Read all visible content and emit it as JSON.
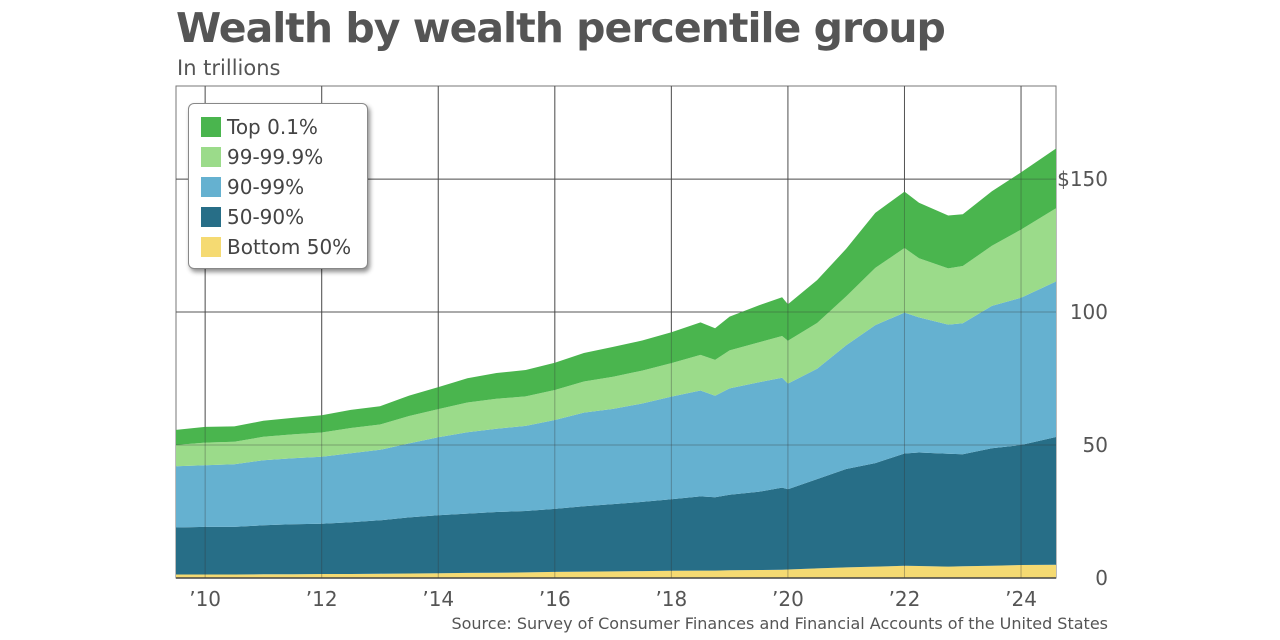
{
  "header": {
    "title": "Wealth by wealth percentile group",
    "subtitle": "In trillions"
  },
  "footer": {
    "source": "Source: Survey of Consumer Finances and Financial Accounts of the United States"
  },
  "chart_data": {
    "type": "area",
    "stacked": true,
    "title": "Wealth by wealth percentile group",
    "subtitle": "In trillions",
    "xlim": [
      2009.5,
      2024.6
    ],
    "ylim": [
      0,
      185
    ],
    "y_ticks": [
      {
        "value": 0,
        "label": "0"
      },
      {
        "value": 50,
        "label": "50"
      },
      {
        "value": 100,
        "label": "100"
      },
      {
        "value": 150,
        "label": "$150"
      }
    ],
    "x_ticks": [
      {
        "value": 2010,
        "label": "’10"
      },
      {
        "value": 2012,
        "label": "’12"
      },
      {
        "value": 2014,
        "label": "’14"
      },
      {
        "value": 2016,
        "label": "’16"
      },
      {
        "value": 2018,
        "label": "’18"
      },
      {
        "value": 2020,
        "label": "’20"
      },
      {
        "value": 2022,
        "label": "’22"
      },
      {
        "value": 2024,
        "label": "’24"
      }
    ],
    "x_gridlines": [
      2010,
      2012,
      2014,
      2016,
      2018,
      2020,
      2022,
      2024
    ],
    "grid": true,
    "legend_position": "top-left",
    "x": [
      2009.5,
      2010,
      2010.5,
      2011,
      2011.5,
      2012,
      2012.5,
      2013,
      2013.5,
      2014,
      2014.5,
      2015,
      2015.5,
      2016,
      2016.5,
      2017,
      2017.5,
      2018,
      2018.5,
      2018.75,
      2019,
      2019.5,
      2019.9,
      2020,
      2020.5,
      2021,
      2021.5,
      2022,
      2022.25,
      2022.75,
      2023,
      2023.5,
      2024,
      2024.6
    ],
    "series": [
      {
        "name": "Bottom 50%",
        "color": "#f5da72",
        "values": [
          1.3,
          1.3,
          1.3,
          1.4,
          1.4,
          1.5,
          1.5,
          1.6,
          1.7,
          1.8,
          1.9,
          2.0,
          2.1,
          2.3,
          2.4,
          2.5,
          2.6,
          2.7,
          2.8,
          2.8,
          2.9,
          3.0,
          3.1,
          3.2,
          3.6,
          4.0,
          4.3,
          4.6,
          4.5,
          4.3,
          4.4,
          4.6,
          4.9,
          5.0
        ]
      },
      {
        "name": "50-90%",
        "color": "#276e87",
        "values": [
          17.7,
          17.9,
          17.9,
          18.4,
          18.8,
          18.9,
          19.5,
          20.1,
          21.1,
          21.8,
          22.3,
          22.8,
          23.1,
          23.7,
          24.6,
          25.3,
          26.0,
          26.9,
          27.9,
          27.6,
          28.4,
          29.4,
          30.9,
          30.2,
          33.6,
          37.0,
          38.9,
          42.2,
          42.7,
          42.4,
          42.1,
          44.2,
          45.1,
          48.0
        ]
      },
      {
        "name": "90-99%",
        "color": "#65b1d0",
        "values": [
          23.0,
          23.2,
          23.6,
          24.5,
          24.8,
          25.2,
          25.9,
          26.5,
          27.8,
          29.3,
          30.6,
          31.3,
          32.0,
          33.4,
          35.2,
          35.8,
          37.0,
          38.6,
          39.8,
          38.1,
          40.0,
          41.2,
          41.3,
          39.7,
          41.5,
          46.5,
          51.9,
          53.0,
          50.8,
          48.6,
          49.3,
          53.5,
          55.4,
          58.5
        ]
      },
      {
        "name": "99-99.9%",
        "color": "#9bdb8a",
        "values": [
          8.0,
          8.5,
          8.4,
          8.8,
          9.0,
          9.1,
          9.5,
          9.5,
          10.3,
          10.6,
          11.2,
          11.3,
          11.1,
          11.3,
          11.7,
          12.1,
          12.4,
          12.6,
          13.4,
          13.5,
          14.3,
          15.0,
          15.7,
          16.1,
          17.2,
          18.4,
          21.5,
          24.3,
          22.2,
          21.1,
          21.5,
          22.6,
          25.6,
          27.5
        ]
      },
      {
        "name": "Top 0.1%",
        "color": "#4ab54e",
        "values": [
          5.7,
          5.9,
          5.8,
          6.0,
          6.2,
          6.5,
          6.8,
          6.9,
          7.7,
          8.3,
          9.1,
          9.7,
          9.9,
          10.2,
          10.7,
          11.2,
          11.3,
          11.6,
          12.2,
          11.9,
          12.7,
          13.9,
          14.6,
          13.7,
          16.1,
          17.9,
          20.7,
          21.2,
          20.9,
          19.9,
          19.5,
          20.5,
          21.5,
          22.5
        ]
      }
    ]
  }
}
